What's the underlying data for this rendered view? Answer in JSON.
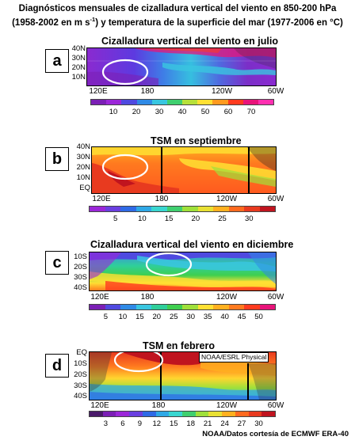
{
  "header": {
    "line1": "Diagnósticos mensuales de cizalladura vertical del viento en 850-200 hPa",
    "line2_a": "(1958-2002 en m s",
    "line2_sup": "-1",
    "line2_b": ") y temperatura de la superficie del mar (1977-2006 en °C)"
  },
  "credit": "NOAA/Datos cortesía de ECMWF ERA-40",
  "chart_data": [
    {
      "type": "heatmap",
      "letter": "a",
      "title": "Cizalladura vertical del viento en julio",
      "y_ticks": [
        "40N",
        "30N",
        "20N",
        "10N"
      ],
      "x_ticks": [
        "120E",
        "180",
        "120W",
        "60W"
      ],
      "colorbar": {
        "labels": [
          "10",
          "20",
          "30",
          "40",
          "50",
          "60",
          "70"
        ],
        "colors": [
          "#7b1fb5",
          "#9b27d8",
          "#4f4ae0",
          "#2f8ae6",
          "#39c6e0",
          "#3fcf6f",
          "#b6e03a",
          "#ffe033",
          "#ff9a1f",
          "#ff3b1f",
          "#e8147a",
          "#ff2fb0"
        ]
      },
      "circled_region": "western Pacific, ~10N-25N, ~130E-150E"
    },
    {
      "type": "heatmap",
      "letter": "b",
      "title": "TSM en septiembre",
      "y_ticks": [
        "40N",
        "30N",
        "20N",
        "10N",
        "EQ"
      ],
      "x_ticks": [
        "120E",
        "180",
        "120W",
        "60W"
      ],
      "colorbar": {
        "labels": [
          "5",
          "10",
          "15",
          "20",
          "25",
          "30"
        ],
        "colors": [
          "#9b27d8",
          "#6a3fe0",
          "#2f6ae6",
          "#2fa8e6",
          "#39d6d0",
          "#3fcf6f",
          "#9fe03a",
          "#e8e033",
          "#ffb01f",
          "#ff6a1f",
          "#e83a1f",
          "#c0141f"
        ]
      },
      "circled_region": "western Pacific warm pool, ~15N-25N"
    },
    {
      "type": "heatmap",
      "letter": "c",
      "title": "Cizalladura vertical del viento en diciembre",
      "y_ticks": [
        "10S",
        "20S",
        "30S",
        "40S"
      ],
      "x_ticks": [
        "120E",
        "180",
        "120W",
        "60W"
      ],
      "colorbar": {
        "labels": [
          "5",
          "10",
          "15",
          "20",
          "25",
          "30",
          "35",
          "40",
          "45",
          "50"
        ],
        "colors": [
          "#7b1fb5",
          "#4f4ae0",
          "#2f8ae6",
          "#39c6e0",
          "#2fcf9a",
          "#3fcf4f",
          "#9fe03a",
          "#ffe033",
          "#ffb01f",
          "#ff7a1f",
          "#ff3b1f",
          "#e8147a"
        ]
      },
      "circled_region": "South Pacific, ~5S-20S, ~170E-170W"
    },
    {
      "type": "heatmap",
      "letter": "d",
      "title": "TSM en febrero",
      "watermark": "NOAA/ESRL Physical",
      "y_ticks": [
        "EQ",
        "10S",
        "20S",
        "30S",
        "40S"
      ],
      "x_ticks": [
        "120E",
        "180",
        "120W",
        "60W"
      ],
      "colorbar": {
        "labels": [
          "3",
          "6",
          "9",
          "12",
          "15",
          "18",
          "21",
          "24",
          "27",
          "30"
        ],
        "colors": [
          "#4a1a6a",
          "#7b1fb5",
          "#9b27d8",
          "#6a3fe0",
          "#2f6ae6",
          "#2fa8e6",
          "#39d6d0",
          "#3fcf6f",
          "#9fe03a",
          "#e8e033",
          "#ffb01f",
          "#ff6a1f",
          "#e83a1f",
          "#c0141f"
        ]
      },
      "circled_region": "South Pacific warm pool, ~5S-15S"
    }
  ]
}
